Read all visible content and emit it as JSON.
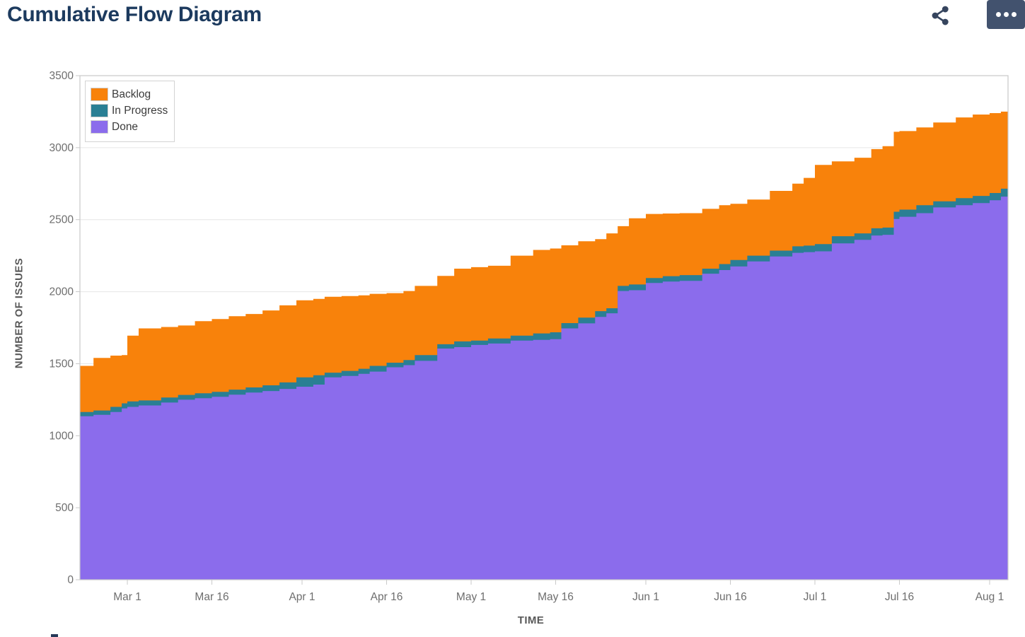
{
  "header": {
    "title": "Cumulative Flow Diagram"
  },
  "toolbar": {
    "share_icon": "share-network",
    "more_button_icon": "ellipsis",
    "more_button_bg": "#42526E",
    "icon_color": "#36455E"
  },
  "colors": {
    "title": "#1C3A5E",
    "axis_text": "#6E6E6E",
    "axis_title": "#595959",
    "gridline": "#E6E6E6",
    "plot_border": "#C9C9C9",
    "background": "#FFFFFF"
  },
  "chart_data": {
    "type": "area",
    "stacked": true,
    "title": "Cumulative Flow Diagram",
    "xlabel": "TIME",
    "ylabel": "NUMBER OF ISSUES",
    "ylim": [
      0,
      3500
    ],
    "yticks": [
      0,
      500,
      1000,
      1500,
      2000,
      2500,
      3000,
      3500
    ],
    "grid": "horizontal",
    "legend_position": "top-left",
    "legend": [
      {
        "label": "Backlog",
        "color": "#F8820B"
      },
      {
        "label": "In Progress",
        "color": "#2A7F94"
      },
      {
        "label": "Done",
        "color": "#8B6CEC"
      }
    ],
    "x_start_date": "Feb 21",
    "x_end_date": "Aug 2",
    "xticks": [
      {
        "day": 8,
        "label": "Mar 1"
      },
      {
        "day": 23,
        "label": "Mar 16"
      },
      {
        "day": 39,
        "label": "Apr 1"
      },
      {
        "day": 54,
        "label": "Apr 16"
      },
      {
        "day": 69,
        "label": "May 1"
      },
      {
        "day": 84,
        "label": "May 16"
      },
      {
        "day": 100,
        "label": "Jun 1"
      },
      {
        "day": 115,
        "label": "Jun 16"
      },
      {
        "day": 130,
        "label": "Jul 1"
      },
      {
        "day": 145,
        "label": "Jul 16"
      },
      {
        "day": 161,
        "label": "Aug 1"
      }
    ],
    "x_days": [
      0,
      2,
      5,
      7,
      8,
      10,
      14,
      17,
      20,
      23,
      26,
      29,
      32,
      35,
      38,
      41,
      43,
      46,
      49,
      51,
      54,
      57,
      59,
      63,
      66,
      69,
      72,
      76,
      80,
      83,
      85,
      88,
      91,
      93,
      95,
      97,
      100,
      103,
      106,
      110,
      113,
      115,
      118,
      122,
      126,
      128,
      130,
      133,
      137,
      140,
      142,
      144,
      145,
      148,
      151,
      155,
      158,
      161,
      163
    ],
    "series": [
      {
        "name": "Done",
        "color": "#8B6CEC",
        "values": [
          1135,
          1145,
          1165,
          1190,
          1200,
          1210,
          1230,
          1250,
          1260,
          1270,
          1285,
          1300,
          1310,
          1325,
          1340,
          1355,
          1405,
          1415,
          1430,
          1445,
          1475,
          1490,
          1520,
          1605,
          1615,
          1630,
          1640,
          1660,
          1665,
          1670,
          1745,
          1780,
          1825,
          1850,
          2005,
          2010,
          2060,
          2070,
          2075,
          2125,
          2150,
          2175,
          2210,
          2245,
          2270,
          2275,
          2280,
          2335,
          2360,
          2390,
          2395,
          2505,
          2520,
          2545,
          2585,
          2600,
          2615,
          2635,
          2660
        ]
      },
      {
        "name": "In Progress",
        "color": "#2A7F94",
        "values": [
          30,
          30,
          35,
          35,
          38,
          35,
          35,
          33,
          35,
          35,
          35,
          35,
          40,
          45,
          65,
          65,
          33,
          35,
          35,
          40,
          32,
          35,
          40,
          30,
          40,
          30,
          35,
          35,
          45,
          48,
          37,
          40,
          40,
          35,
          35,
          40,
          35,
          38,
          40,
          35,
          42,
          45,
          40,
          40,
          45,
          45,
          50,
          50,
          45,
          50,
          50,
          50,
          50,
          55,
          42,
          50,
          50,
          50,
          55
        ]
      },
      {
        "name": "Backlog",
        "color": "#F8820B",
        "values": [
          320,
          365,
          356,
          335,
          457,
          500,
          490,
          482,
          500,
          505,
          510,
          510,
          520,
          535,
          535,
          530,
          527,
          520,
          510,
          500,
          483,
          480,
          480,
          475,
          505,
          510,
          505,
          555,
          580,
          582,
          540,
          530,
          500,
          520,
          415,
          460,
          445,
          435,
          430,
          415,
          408,
          390,
          390,
          415,
          435,
          470,
          550,
          520,
          525,
          550,
          565,
          555,
          545,
          540,
          548,
          560,
          565,
          555,
          535
        ]
      }
    ]
  }
}
